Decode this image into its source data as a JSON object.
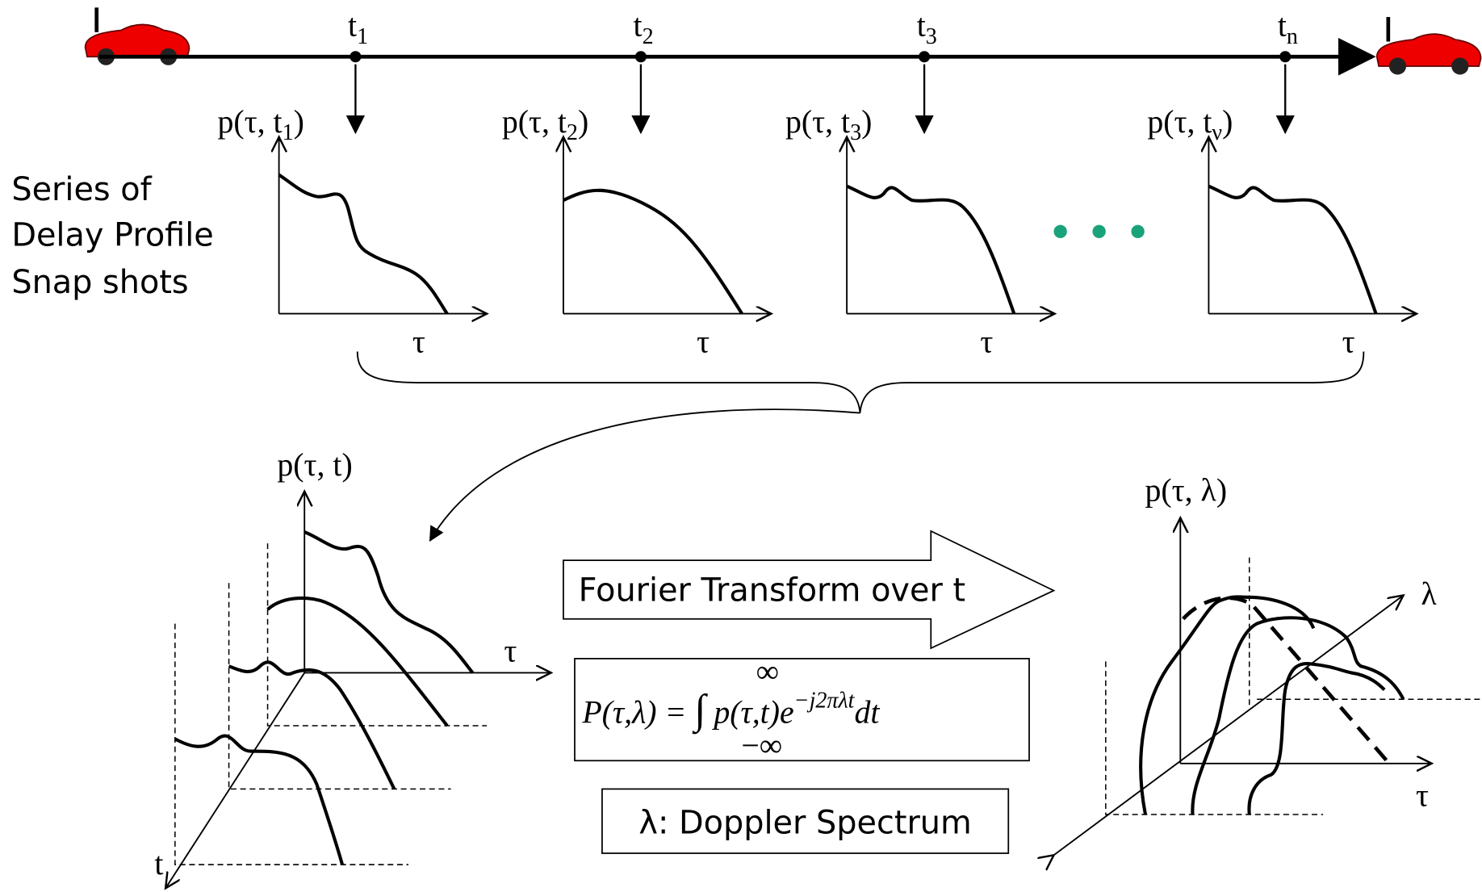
{
  "timeline": {
    "marks": [
      {
        "base": "t",
        "sub": "1"
      },
      {
        "base": "t",
        "sub": "2"
      },
      {
        "base": "t",
        "sub": "3"
      },
      {
        "base": "t",
        "sub": "n"
      }
    ]
  },
  "snapshots": {
    "caption": [
      "Series of",
      "Delay Profile",
      "Snap shots"
    ],
    "profiles": [
      {
        "label": "p(τ, t",
        "sub": "1",
        "close": ")",
        "axis": "τ"
      },
      {
        "label": "p(τ, t",
        "sub": "2",
        "close": ")",
        "axis": "τ"
      },
      {
        "label": "p(τ, t",
        "sub": "3",
        "close": ")",
        "axis": "τ"
      },
      {
        "label": "p(τ, t",
        "sub": "ν",
        "close": ")",
        "axis": "τ"
      }
    ]
  },
  "stack": {
    "y_label": "p(τ, t)",
    "x_label": "τ",
    "depth_label": "t"
  },
  "transform": {
    "arrow_text": "Fourier Transform over t",
    "formula": {
      "lhs": "P(τ,λ) =",
      "integral": "∫",
      "upper": "∞",
      "lower": "−∞",
      "integrand": "p(τ,t)e",
      "exponent": "−j2πλt",
      "tail": "dt"
    },
    "note": "λ: Doppler Spectrum"
  },
  "spectrum": {
    "y_label": "p(τ, λ)",
    "x_label": "τ",
    "depth_label": "λ"
  }
}
